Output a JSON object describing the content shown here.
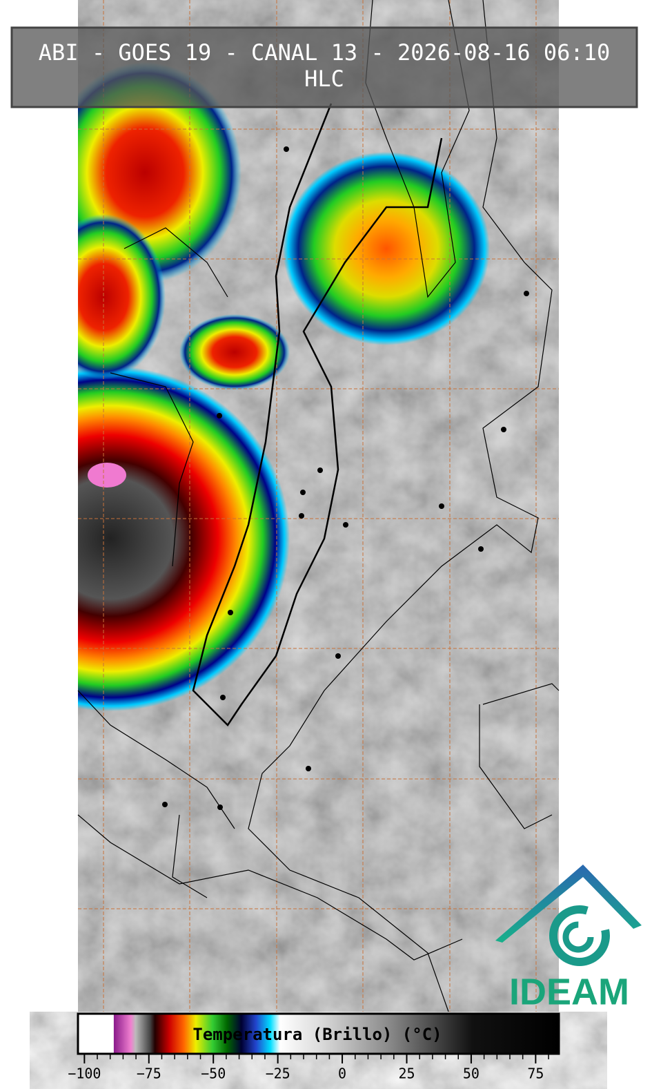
{
  "header": {
    "title": "ABI - GOES 19 - CANAL 13 - 2026-08-16 06:10",
    "subtitle": "HLC"
  },
  "colorbar": {
    "label": "Temperatura (Brillo) (°C)",
    "lim": [
      -102.5,
      84
    ],
    "ticks": [
      {
        "value": -100,
        "label": "−100"
      },
      {
        "value": -75,
        "label": "−75"
      },
      {
        "value": -50,
        "label": "−50"
      },
      {
        "value": -25,
        "label": "−25"
      },
      0,
      25,
      50,
      75
    ],
    "minor_ticks": [
      -95,
      -90,
      -85,
      -80,
      -70,
      -65,
      -60,
      -55,
      -45,
      -40,
      -35,
      -30,
      -20,
      -15,
      -10,
      -5,
      5,
      10,
      15,
      20,
      30,
      35,
      40,
      45,
      55,
      60,
      65,
      70,
      80
    ]
  },
  "logo": {
    "text": "IDEAM"
  }
}
